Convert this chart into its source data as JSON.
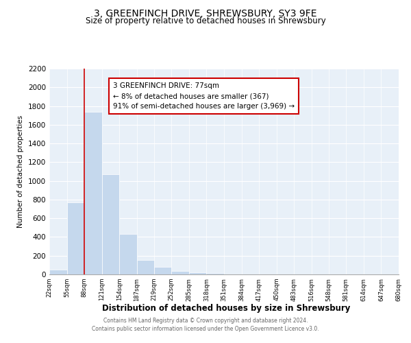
{
  "title": "3, GREENFINCH DRIVE, SHREWSBURY, SY3 9FE",
  "subtitle": "Size of property relative to detached houses in Shrewsbury",
  "xlabel": "Distribution of detached houses by size in Shrewsbury",
  "ylabel": "Number of detached properties",
  "bar_color": "#c5d8ed",
  "bar_edge_color": "#9bbbd6",
  "grid_color": "#dce8f5",
  "bg_color": "#e8f0f8",
  "bin_labels": [
    "22sqm",
    "55sqm",
    "88sqm",
    "121sqm",
    "154sqm",
    "187sqm",
    "219sqm",
    "252sqm",
    "285sqm",
    "318sqm",
    "351sqm",
    "384sqm",
    "417sqm",
    "450sqm",
    "483sqm",
    "516sqm",
    "548sqm",
    "581sqm",
    "614sqm",
    "647sqm",
    "680sqm"
  ],
  "bar_heights": [
    55,
    770,
    1740,
    1070,
    430,
    155,
    80,
    40,
    25,
    15,
    0,
    0,
    0,
    0,
    0,
    0,
    0,
    0,
    0,
    0
  ],
  "ylim": [
    0,
    2200
  ],
  "yticks": [
    0,
    200,
    400,
    600,
    800,
    1000,
    1200,
    1400,
    1600,
    1800,
    2000,
    2200
  ],
  "red_line_x": 88,
  "annotation_title": "3 GREENFINCH DRIVE: 77sqm",
  "annotation_line1": "← 8% of detached houses are smaller (367)",
  "annotation_line2": "91% of semi-detached houses are larger (3,969) →",
  "footer_line1": "Contains HM Land Registry data © Crown copyright and database right 2024.",
  "footer_line2": "Contains public sector information licensed under the Open Government Licence v3.0.",
  "annotation_box_color": "#ffffff",
  "annotation_box_edge": "#cc0000",
  "red_line_color": "#cc0000"
}
